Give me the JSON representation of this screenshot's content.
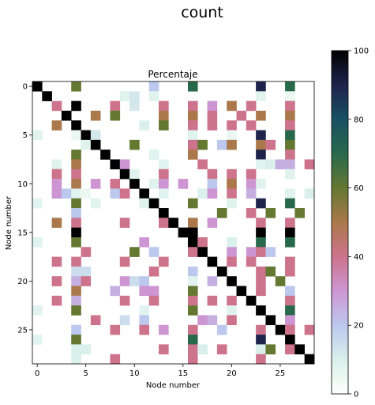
{
  "chart_data": {
    "type": "heatmap",
    "suptitle": "count",
    "title": "Percentaje",
    "xlabel": "Node number",
    "ylabel": "Node number",
    "n": 29,
    "xticks": [
      0,
      5,
      10,
      15,
      20,
      25
    ],
    "yticks": [
      0,
      5,
      10,
      15,
      20,
      25
    ],
    "colorbar": {
      "min": 0,
      "max": 100,
      "ticks": [
        0,
        20,
        40,
        60,
        80,
        100
      ],
      "colormap": "cubehelix"
    },
    "grid": false,
    "cells": [
      [
        0,
        0,
        100
      ],
      [
        0,
        4,
        60
      ],
      [
        0,
        12,
        20
      ],
      [
        0,
        16,
        70
      ],
      [
        0,
        23,
        90
      ],
      [
        0,
        26,
        70
      ],
      [
        1,
        1,
        100
      ],
      [
        1,
        9,
        8
      ],
      [
        1,
        10,
        12
      ],
      [
        1,
        12,
        8
      ],
      [
        1,
        23,
        8
      ],
      [
        1,
        26,
        5
      ],
      [
        2,
        2,
        40
      ],
      [
        2,
        4,
        100
      ],
      [
        2,
        8,
        40
      ],
      [
        2,
        10,
        12
      ],
      [
        2,
        13,
        40
      ],
      [
        2,
        16,
        40
      ],
      [
        2,
        18,
        30
      ],
      [
        2,
        20,
        50
      ],
      [
        2,
        22,
        40
      ],
      [
        2,
        26,
        40
      ],
      [
        3,
        3,
        100
      ],
      [
        3,
        6,
        50
      ],
      [
        3,
        8,
        60
      ],
      [
        3,
        13,
        50
      ],
      [
        3,
        16,
        50
      ],
      [
        3,
        18,
        40
      ],
      [
        3,
        21,
        40
      ],
      [
        3,
        23,
        50
      ],
      [
        3,
        26,
        50
      ],
      [
        4,
        2,
        50
      ],
      [
        4,
        4,
        100
      ],
      [
        4,
        11,
        10
      ],
      [
        4,
        13,
        60
      ],
      [
        4,
        16,
        40
      ],
      [
        4,
        18,
        40
      ],
      [
        4,
        20,
        40
      ],
      [
        4,
        22,
        40
      ],
      [
        4,
        26,
        40
      ],
      [
        5,
        0,
        8
      ],
      [
        5,
        4,
        5
      ],
      [
        5,
        5,
        100
      ],
      [
        5,
        6,
        12
      ],
      [
        5,
        16,
        8
      ],
      [
        5,
        20,
        5
      ],
      [
        5,
        23,
        90
      ],
      [
        5,
        26,
        70
      ],
      [
        6,
        5,
        8
      ],
      [
        6,
        6,
        100
      ],
      [
        6,
        10,
        60
      ],
      [
        6,
        16,
        40
      ],
      [
        6,
        17,
        60
      ],
      [
        6,
        19,
        20
      ],
      [
        6,
        20,
        50
      ],
      [
        6,
        23,
        50
      ],
      [
        6,
        24,
        40
      ],
      [
        6,
        26,
        60
      ],
      [
        7,
        4,
        60
      ],
      [
        7,
        7,
        100
      ],
      [
        7,
        12,
        8
      ],
      [
        7,
        16,
        50
      ],
      [
        7,
        23,
        90
      ],
      [
        7,
        26,
        40
      ],
      [
        8,
        2,
        8
      ],
      [
        8,
        4,
        50
      ],
      [
        8,
        8,
        100
      ],
      [
        8,
        9,
        30
      ],
      [
        8,
        13,
        8
      ],
      [
        8,
        17,
        40
      ],
      [
        8,
        23,
        8
      ],
      [
        8,
        24,
        10
      ],
      [
        8,
        25,
        25
      ],
      [
        8,
        26,
        25
      ],
      [
        8,
        28,
        40
      ],
      [
        9,
        2,
        40
      ],
      [
        9,
        4,
        40
      ],
      [
        9,
        9,
        100
      ],
      [
        9,
        10,
        8
      ],
      [
        9,
        13,
        40
      ],
      [
        9,
        18,
        40
      ],
      [
        9,
        20,
        40
      ],
      [
        9,
        22,
        40
      ],
      [
        9,
        26,
        8
      ],
      [
        10,
        2,
        30
      ],
      [
        10,
        4,
        50
      ],
      [
        10,
        6,
        30
      ],
      [
        10,
        8,
        40
      ],
      [
        10,
        10,
        100
      ],
      [
        10,
        12,
        8
      ],
      [
        10,
        13,
        30
      ],
      [
        10,
        15,
        30
      ],
      [
        10,
        18,
        20
      ],
      [
        10,
        20,
        50
      ],
      [
        10,
        22,
        30
      ],
      [
        10,
        23,
        8
      ],
      [
        11,
        2,
        30
      ],
      [
        11,
        3,
        20
      ],
      [
        11,
        4,
        8
      ],
      [
        11,
        5,
        5
      ],
      [
        11,
        8,
        20
      ],
      [
        11,
        9,
        40
      ],
      [
        11,
        11,
        100
      ],
      [
        11,
        13,
        8
      ],
      [
        11,
        17,
        10
      ],
      [
        11,
        18,
        30
      ],
      [
        11,
        20,
        40
      ],
      [
        11,
        22,
        25
      ],
      [
        11,
        26,
        8
      ],
      [
        11,
        28,
        10
      ],
      [
        12,
        0,
        8
      ],
      [
        12,
        4,
        60
      ],
      [
        12,
        6,
        8
      ],
      [
        12,
        11,
        8
      ],
      [
        12,
        12,
        100
      ],
      [
        12,
        16,
        60
      ],
      [
        12,
        20,
        8
      ],
      [
        12,
        23,
        90
      ],
      [
        12,
        26,
        70
      ],
      [
        13,
        4,
        20
      ],
      [
        13,
        13,
        100
      ],
      [
        13,
        19,
        60
      ],
      [
        13,
        22,
        40
      ],
      [
        13,
        24,
        60
      ],
      [
        13,
        27,
        60
      ],
      [
        14,
        2,
        50
      ],
      [
        14,
        4,
        40
      ],
      [
        14,
        9,
        40
      ],
      [
        14,
        13,
        40
      ],
      [
        14,
        14,
        100
      ],
      [
        14,
        16,
        50
      ],
      [
        14,
        18,
        30
      ],
      [
        14,
        23,
        40
      ],
      [
        14,
        26,
        40
      ],
      [
        15,
        4,
        100
      ],
      [
        15,
        15,
        100
      ],
      [
        15,
        16,
        100
      ],
      [
        15,
        23,
        100
      ],
      [
        15,
        26,
        100
      ],
      [
        16,
        0,
        8
      ],
      [
        16,
        4,
        60
      ],
      [
        16,
        11,
        30
      ],
      [
        16,
        16,
        100
      ],
      [
        16,
        17,
        40
      ],
      [
        16,
        20,
        10
      ],
      [
        16,
        23,
        70
      ],
      [
        16,
        26,
        70
      ],
      [
        17,
        5,
        40
      ],
      [
        17,
        10,
        60
      ],
      [
        17,
        12,
        20
      ],
      [
        17,
        16,
        40
      ],
      [
        17,
        17,
        100
      ],
      [
        17,
        20,
        30
      ],
      [
        17,
        22,
        30
      ],
      [
        17,
        23,
        40
      ],
      [
        17,
        24,
        20
      ],
      [
        18,
        2,
        40
      ],
      [
        18,
        4,
        40
      ],
      [
        18,
        9,
        40
      ],
      [
        18,
        13,
        40
      ],
      [
        18,
        18,
        100
      ],
      [
        18,
        20,
        40
      ],
      [
        18,
        22,
        40
      ],
      [
        18,
        26,
        40
      ],
      [
        19,
        4,
        15
      ],
      [
        19,
        5,
        15
      ],
      [
        19,
        12,
        40
      ],
      [
        19,
        16,
        20
      ],
      [
        19,
        19,
        100
      ],
      [
        19,
        23,
        40
      ],
      [
        19,
        24,
        60
      ],
      [
        19,
        26,
        40
      ],
      [
        20,
        2,
        40
      ],
      [
        20,
        4,
        25
      ],
      [
        20,
        5,
        40
      ],
      [
        20,
        9,
        30
      ],
      [
        20,
        10,
        15
      ],
      [
        20,
        11,
        20
      ],
      [
        20,
        16,
        8
      ],
      [
        20,
        18,
        25
      ],
      [
        20,
        20,
        100
      ],
      [
        20,
        23,
        40
      ],
      [
        20,
        25,
        60
      ],
      [
        21,
        4,
        50
      ],
      [
        21,
        8,
        25
      ],
      [
        21,
        11,
        30
      ],
      [
        21,
        12,
        30
      ],
      [
        21,
        16,
        60
      ],
      [
        21,
        21,
        100
      ],
      [
        21,
        23,
        40
      ],
      [
        21,
        26,
        20
      ],
      [
        22,
        2,
        40
      ],
      [
        22,
        4,
        25
      ],
      [
        22,
        9,
        40
      ],
      [
        22,
        12,
        40
      ],
      [
        22,
        16,
        40
      ],
      [
        22,
        18,
        40
      ],
      [
        22,
        20,
        40
      ],
      [
        22,
        22,
        100
      ],
      [
        22,
        26,
        40
      ],
      [
        23,
        0,
        8
      ],
      [
        23,
        4,
        60
      ],
      [
        23,
        11,
        8
      ],
      [
        23,
        16,
        60
      ],
      [
        23,
        20,
        8
      ],
      [
        23,
        23,
        100
      ],
      [
        23,
        26,
        70
      ],
      [
        24,
        6,
        40
      ],
      [
        24,
        9,
        15
      ],
      [
        24,
        11,
        20
      ],
      [
        24,
        17,
        30
      ],
      [
        24,
        18,
        25
      ],
      [
        24,
        20,
        40
      ],
      [
        24,
        24,
        100
      ],
      [
        24,
        26,
        30
      ],
      [
        25,
        4,
        20
      ],
      [
        25,
        8,
        40
      ],
      [
        25,
        11,
        40
      ],
      [
        25,
        13,
        30
      ],
      [
        25,
        16,
        40
      ],
      [
        25,
        19,
        20
      ],
      [
        25,
        23,
        40
      ],
      [
        25,
        25,
        100
      ],
      [
        25,
        26,
        40
      ],
      [
        25,
        28,
        40
      ],
      [
        26,
        0,
        8
      ],
      [
        26,
        4,
        60
      ],
      [
        26,
        16,
        70
      ],
      [
        26,
        23,
        90
      ],
      [
        26,
        26,
        100
      ],
      [
        27,
        4,
        10
      ],
      [
        27,
        5,
        10
      ],
      [
        27,
        13,
        40
      ],
      [
        27,
        16,
        40
      ],
      [
        27,
        17,
        10
      ],
      [
        27,
        19,
        40
      ],
      [
        27,
        23,
        10
      ],
      [
        27,
        24,
        60
      ],
      [
        27,
        26,
        40
      ],
      [
        27,
        27,
        100
      ],
      [
        28,
        4,
        10
      ],
      [
        28,
        8,
        40
      ],
      [
        28,
        16,
        40
      ],
      [
        28,
        23,
        40
      ],
      [
        28,
        28,
        100
      ]
    ],
    "background": "#ffffff"
  }
}
